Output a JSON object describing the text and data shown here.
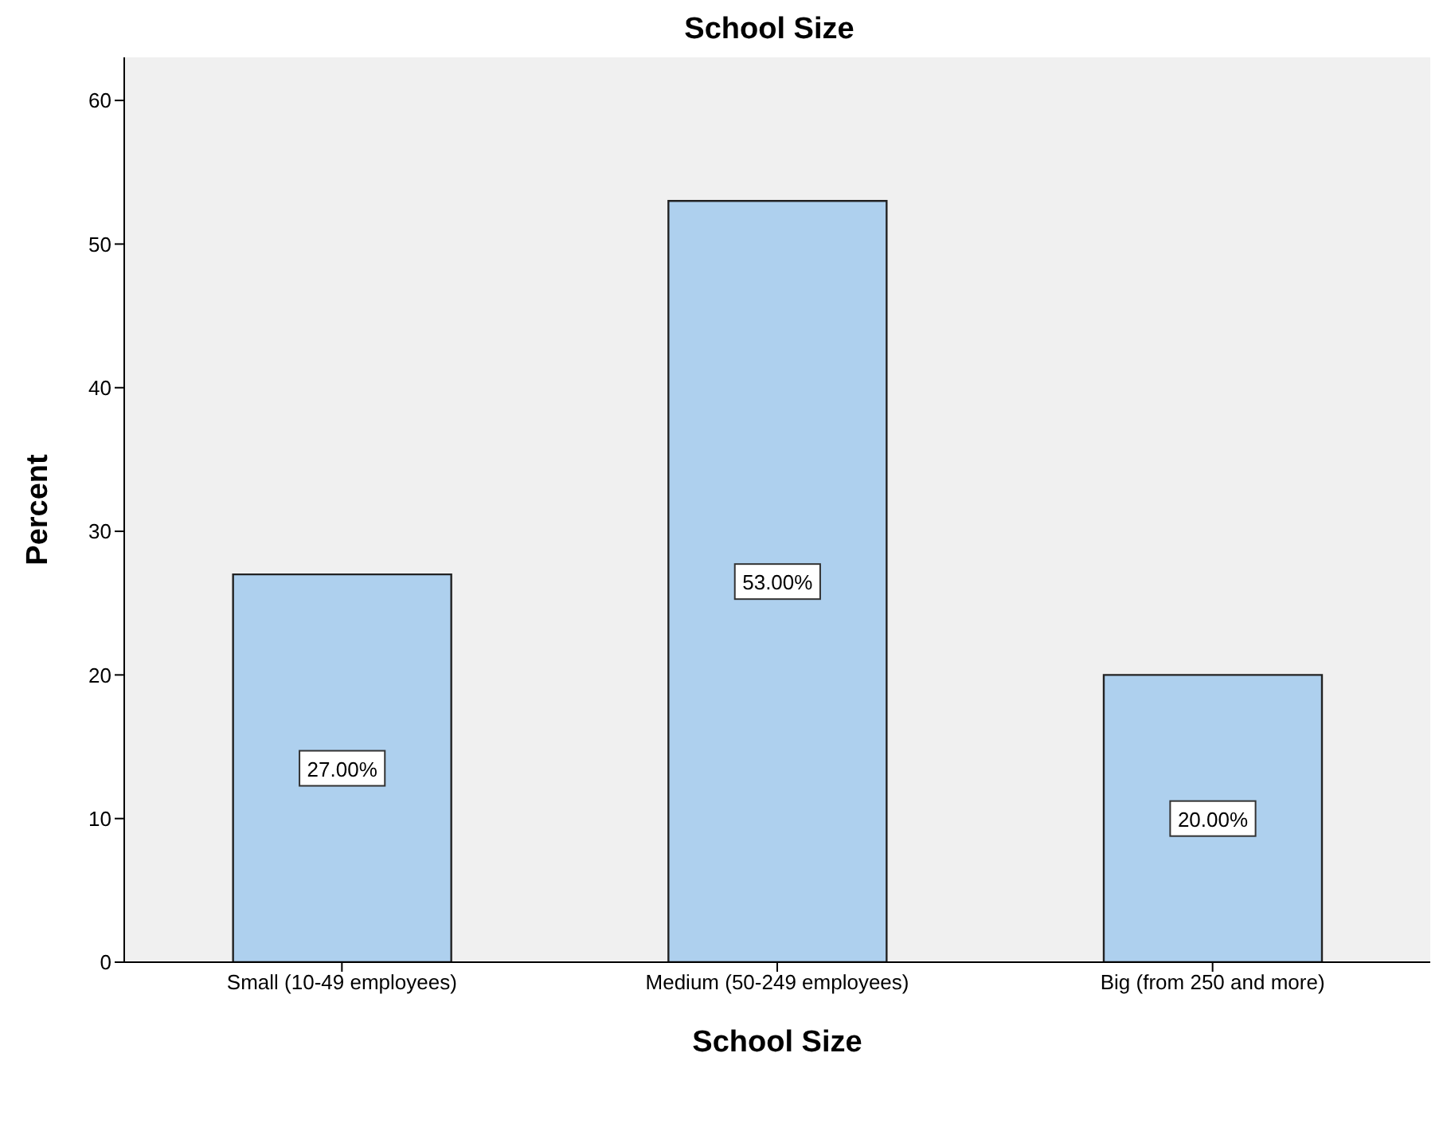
{
  "chart_data": {
    "type": "bar",
    "title": "School Size",
    "xlabel": "School Size",
    "ylabel": "Percent",
    "categories": [
      "Small (10-49 employees)",
      "Medium (50-249 employees)",
      "Big (from 250 and more)"
    ],
    "values": [
      27,
      53,
      20
    ],
    "value_labels": [
      "27.00%",
      "53.00%",
      "20.00%"
    ],
    "color": "#aed0ee",
    "ylim": [
      0,
      63
    ],
    "yticks": [
      0,
      10,
      20,
      30,
      40,
      50,
      60
    ],
    "grid": false
  }
}
